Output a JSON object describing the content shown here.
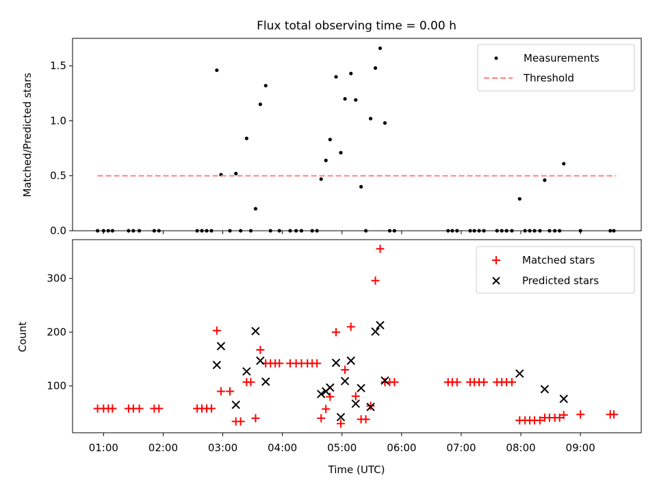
{
  "title": "Flux total observing time = 0.00 h",
  "chart_data": [
    {
      "type": "scatter",
      "panel": "top",
      "ylabel": "Matched/Predicted stars",
      "ylim": [
        0,
        1.75
      ],
      "yticks": [
        0.0,
        0.5,
        1.0,
        1.5
      ],
      "ytick_labels": [
        "0.0",
        "0.5",
        "1.0",
        "1.5"
      ],
      "legend": {
        "placement": "top-right",
        "entries": [
          "Measurements",
          "Threshold"
        ]
      },
      "threshold": {
        "name": "Threshold",
        "value": 0.5,
        "x_start": 0.9,
        "x_end": 9.6,
        "color": "#ff8080"
      },
      "series": [
        {
          "name": "Measurements",
          "color": "#000000",
          "points": [
            [
              0.9,
              0
            ],
            [
              1.0,
              0
            ],
            [
              1.08,
              0
            ],
            [
              1.15,
              0
            ],
            [
              1.42,
              0
            ],
            [
              1.5,
              0
            ],
            [
              1.6,
              0
            ],
            [
              1.85,
              0
            ],
            [
              1.93,
              0
            ],
            [
              2.57,
              0
            ],
            [
              2.65,
              0
            ],
            [
              2.73,
              0
            ],
            [
              2.81,
              0
            ],
            [
              2.9,
              1.46
            ],
            [
              2.97,
              0.51
            ],
            [
              3.12,
              0
            ],
            [
              3.22,
              0.52
            ],
            [
              3.3,
              0
            ],
            [
              3.4,
              0.84
            ],
            [
              3.47,
              0
            ],
            [
              3.55,
              0.2
            ],
            [
              3.63,
              1.15
            ],
            [
              3.72,
              1.32
            ],
            [
              3.8,
              0
            ],
            [
              3.95,
              0
            ],
            [
              4.13,
              0
            ],
            [
              4.23,
              0
            ],
            [
              4.32,
              0
            ],
            [
              4.5,
              0
            ],
            [
              4.58,
              0
            ],
            [
              4.65,
              0.47
            ],
            [
              4.73,
              0.64
            ],
            [
              4.8,
              0.83
            ],
            [
              4.9,
              1.4
            ],
            [
              4.98,
              0.71
            ],
            [
              5.05,
              1.2
            ],
            [
              5.15,
              1.43
            ],
            [
              5.23,
              1.19
            ],
            [
              5.32,
              0.4
            ],
            [
              5.4,
              0
            ],
            [
              5.48,
              1.02
            ],
            [
              5.56,
              1.48
            ],
            [
              5.64,
              1.66
            ],
            [
              5.72,
              0.98
            ],
            [
              5.8,
              0
            ],
            [
              5.88,
              0
            ],
            [
              6.78,
              0
            ],
            [
              6.85,
              0
            ],
            [
              6.93,
              0
            ],
            [
              7.15,
              0
            ],
            [
              7.22,
              0
            ],
            [
              7.3,
              0
            ],
            [
              7.38,
              0
            ],
            [
              7.6,
              0
            ],
            [
              7.68,
              0
            ],
            [
              7.76,
              0
            ],
            [
              7.85,
              0
            ],
            [
              7.98,
              0.29
            ],
            [
              8.07,
              0
            ],
            [
              8.15,
              0
            ],
            [
              8.23,
              0
            ],
            [
              8.32,
              0
            ],
            [
              8.4,
              0.46
            ],
            [
              8.48,
              0
            ],
            [
              8.57,
              0
            ],
            [
              8.65,
              0
            ],
            [
              8.72,
              0.61
            ],
            [
              9.0,
              0
            ],
            [
              9.5,
              0
            ],
            [
              9.56,
              0
            ]
          ]
        }
      ]
    },
    {
      "type": "scatter",
      "panel": "bottom",
      "xlabel": "Time (UTC)",
      "ylabel": "Count",
      "xlim": [
        0.48,
        10.02
      ],
      "ylim": [
        13,
        372
      ],
      "yticks": [
        100,
        200,
        300
      ],
      "ytick_labels": [
        "100",
        "200",
        "300"
      ],
      "xticks": [
        1,
        2,
        3,
        4,
        5,
        6,
        7,
        8,
        9
      ],
      "xtick_labels": [
        "01:00",
        "02:00",
        "03:00",
        "04:00",
        "05:00",
        "06:00",
        "07:00",
        "08:00",
        "09:00"
      ],
      "legend": {
        "placement": "top-right",
        "entries": [
          "Matched stars",
          "Predicted stars"
        ]
      },
      "series": [
        {
          "name": "Matched stars",
          "marker": "plus",
          "color": "#ff0000",
          "points": [
            [
              0.9,
              58
            ],
            [
              1.0,
              58
            ],
            [
              1.08,
              58
            ],
            [
              1.15,
              58
            ],
            [
              1.42,
              58
            ],
            [
              1.5,
              58
            ],
            [
              1.6,
              58
            ],
            [
              1.85,
              58
            ],
            [
              1.93,
              58
            ],
            [
              2.57,
              58
            ],
            [
              2.65,
              58
            ],
            [
              2.73,
              58
            ],
            [
              2.81,
              58
            ],
            [
              2.9,
              203
            ],
            [
              2.97,
              90
            ],
            [
              3.12,
              90
            ],
            [
              3.22,
              34
            ],
            [
              3.3,
              34
            ],
            [
              3.4,
              107
            ],
            [
              3.47,
              107
            ],
            [
              3.55,
              40
            ],
            [
              3.63,
              167
            ],
            [
              3.72,
              142
            ],
            [
              3.8,
              142
            ],
            [
              3.88,
              142
            ],
            [
              3.95,
              142
            ],
            [
              4.13,
              142
            ],
            [
              4.23,
              142
            ],
            [
              4.32,
              142
            ],
            [
              4.42,
              142
            ],
            [
              4.5,
              142
            ],
            [
              4.58,
              142
            ],
            [
              4.65,
              40
            ],
            [
              4.73,
              57
            ],
            [
              4.8,
              80
            ],
            [
              4.9,
              200
            ],
            [
              4.98,
              30
            ],
            [
              5.05,
              130
            ],
            [
              5.15,
              210
            ],
            [
              5.23,
              81
            ],
            [
              5.32,
              38
            ],
            [
              5.4,
              38
            ],
            [
              5.48,
              63
            ],
            [
              5.56,
              296
            ],
            [
              5.64,
              355
            ],
            [
              5.72,
              107
            ],
            [
              5.8,
              107
            ],
            [
              5.88,
              107
            ],
            [
              6.78,
              107
            ],
            [
              6.85,
              107
            ],
            [
              6.93,
              107
            ],
            [
              7.15,
              107
            ],
            [
              7.22,
              107
            ],
            [
              7.3,
              107
            ],
            [
              7.38,
              107
            ],
            [
              7.6,
              107
            ],
            [
              7.68,
              107
            ],
            [
              7.76,
              107
            ],
            [
              7.85,
              107
            ],
            [
              7.98,
              36
            ],
            [
              8.07,
              36
            ],
            [
              8.15,
              36
            ],
            [
              8.23,
              36
            ],
            [
              8.32,
              36
            ],
            [
              8.4,
              41
            ],
            [
              8.48,
              41
            ],
            [
              8.57,
              41
            ],
            [
              8.65,
              41
            ],
            [
              8.72,
              46
            ],
            [
              9.0,
              47
            ],
            [
              9.5,
              47
            ],
            [
              9.56,
              47
            ]
          ]
        },
        {
          "name": "Predicted stars",
          "marker": "x",
          "color": "#000000",
          "points": [
            [
              2.9,
              139
            ],
            [
              2.97,
              174
            ],
            [
              3.22,
              65
            ],
            [
              3.4,
              127
            ],
            [
              3.55,
              202
            ],
            [
              3.63,
              147
            ],
            [
              3.72,
              108
            ],
            [
              4.65,
              85
            ],
            [
              4.73,
              90
            ],
            [
              4.8,
              97
            ],
            [
              4.9,
              143
            ],
            [
              4.98,
              42
            ],
            [
              5.05,
              109
            ],
            [
              5.15,
              147
            ],
            [
              5.23,
              67
            ],
            [
              5.32,
              96
            ],
            [
              5.48,
              61
            ],
            [
              5.56,
              201
            ],
            [
              5.64,
              213
            ],
            [
              5.72,
              110
            ],
            [
              7.98,
              123
            ],
            [
              8.4,
              94
            ],
            [
              8.72,
              76
            ]
          ]
        }
      ]
    }
  ]
}
